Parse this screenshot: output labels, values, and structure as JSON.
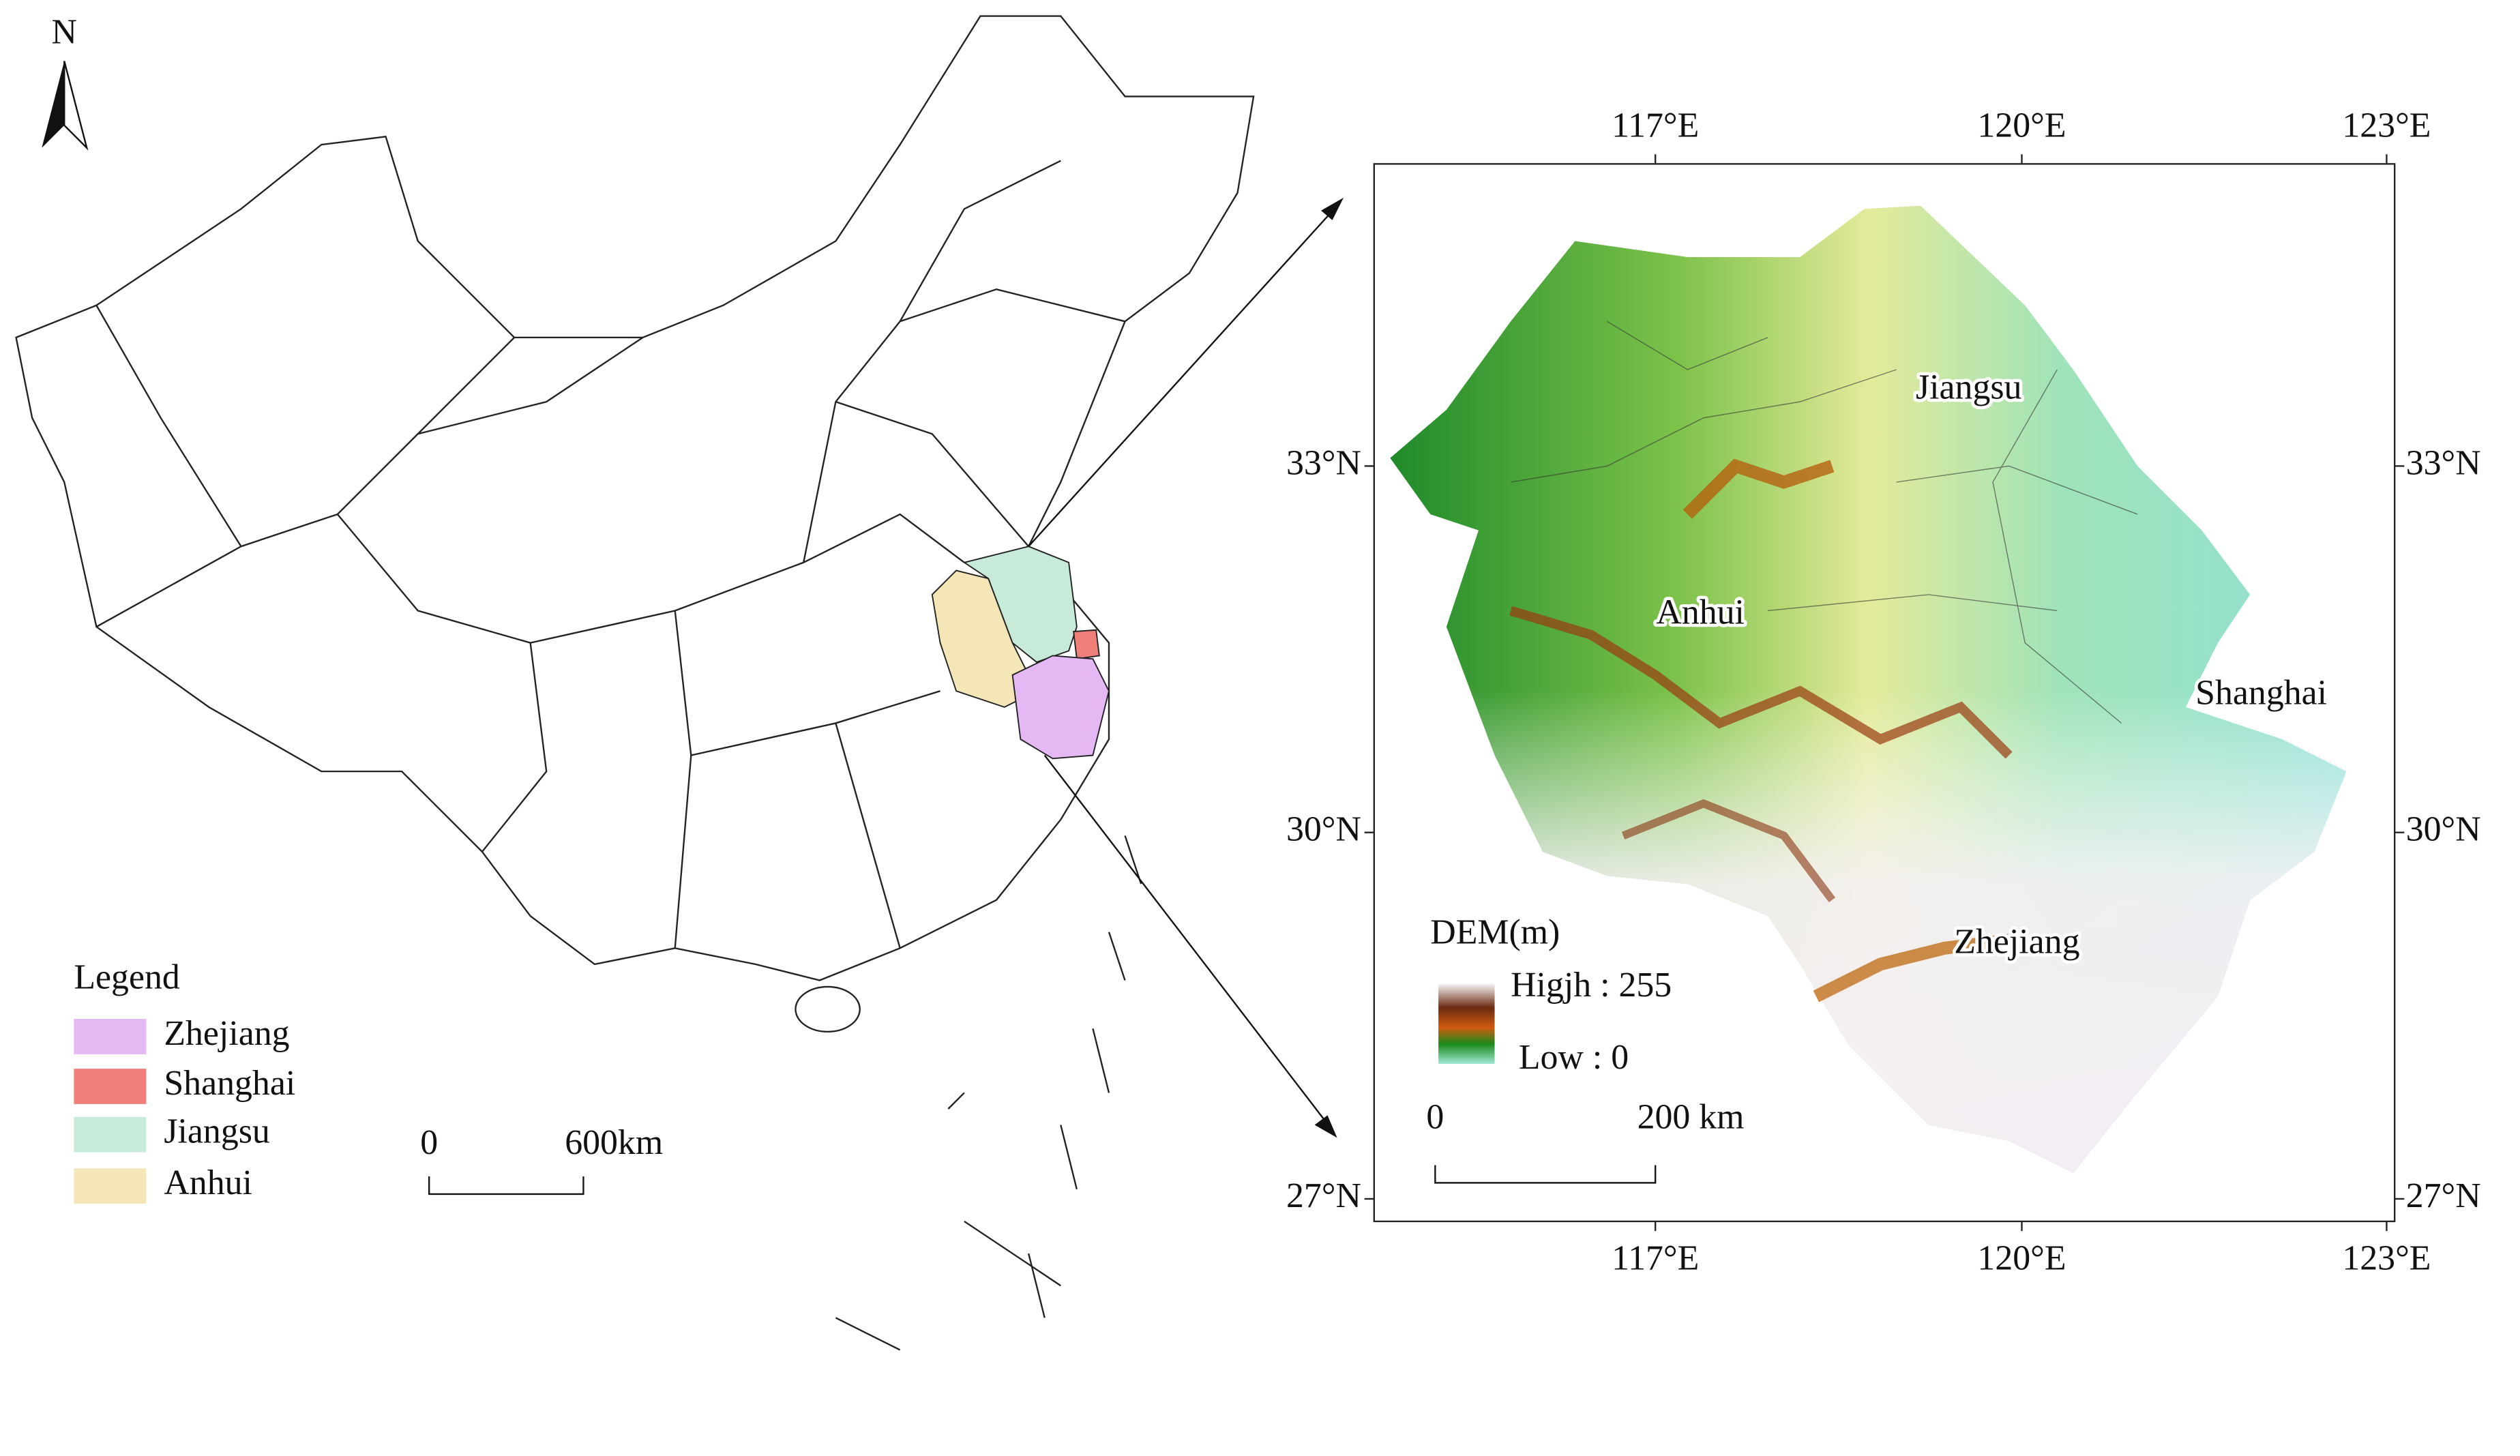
{
  "north_arrow": "N",
  "legend": {
    "title": "Legend",
    "items": [
      {
        "label": "Zhejiang",
        "color": "#e4b8f2"
      },
      {
        "label": "Shanghai",
        "color": "#f07f7a"
      },
      {
        "label": "Jiangsu",
        "color": "#c8ead8"
      },
      {
        "label": "Anhui",
        "color": "#f5e6b8"
      }
    ]
  },
  "scale_bar": {
    "start": "0",
    "end": "600km"
  },
  "inset": {
    "top_ticks": [
      "117°E",
      "120°E",
      "123°E"
    ],
    "bottom_ticks": [
      "117°E",
      "120°E",
      "123°E"
    ],
    "left_ticks": [
      "33°N",
      "30°N",
      "27°N"
    ],
    "right_ticks": [
      "33°N",
      "30°N",
      "27°N"
    ],
    "region_labels": [
      "Jiangsu",
      "Anhui",
      "Shanghai",
      "Zhejiang"
    ],
    "dem_legend": {
      "title": "DEM(m)",
      "high": "Higjh : 255",
      "low": "Low : 0"
    },
    "scale_bar": {
      "start": "0",
      "end": "200 km"
    }
  }
}
